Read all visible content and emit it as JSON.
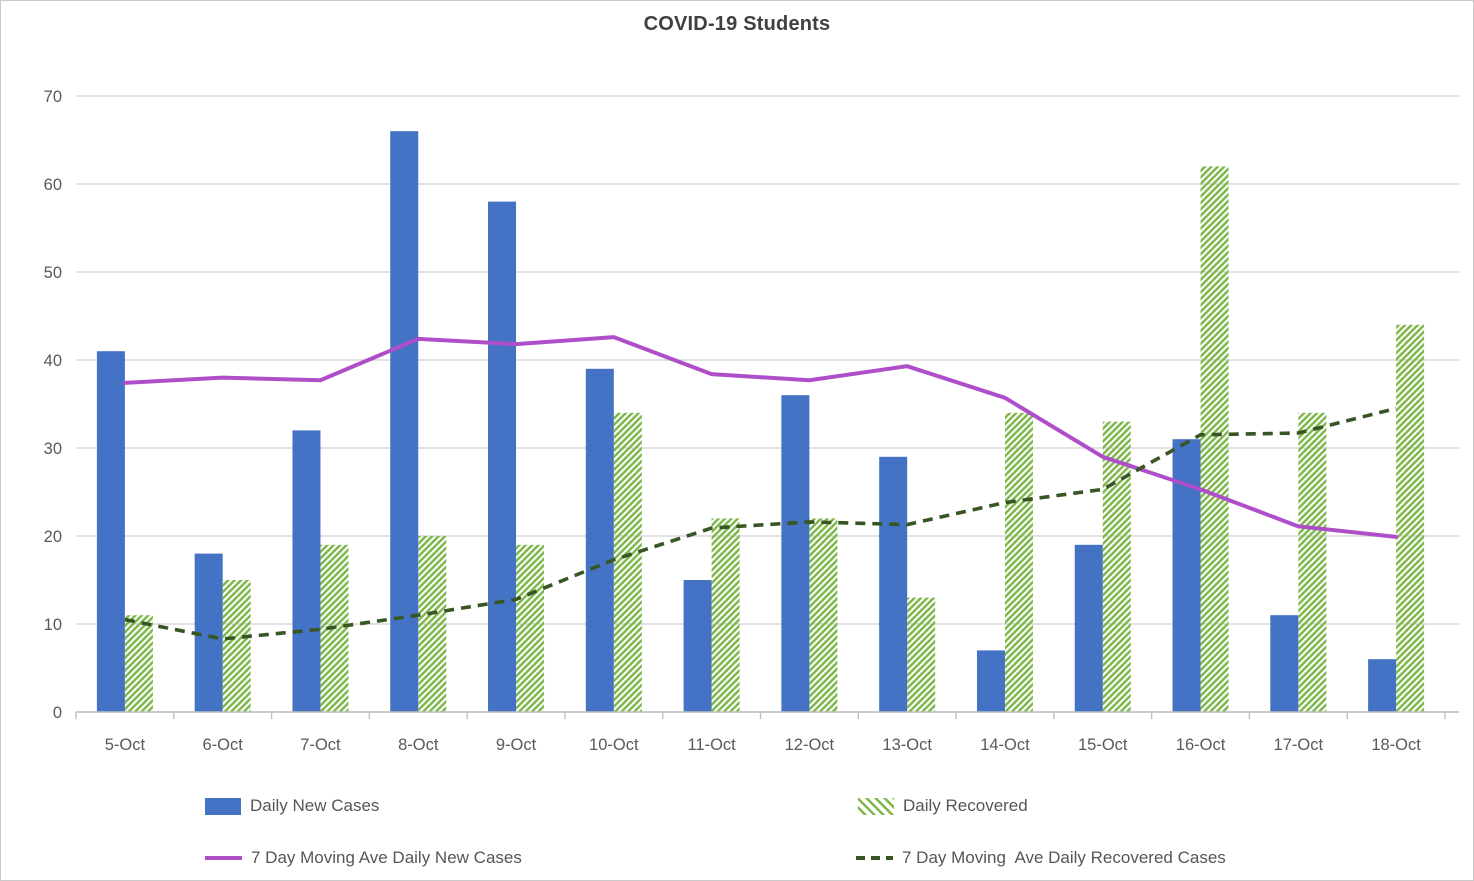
{
  "title": "COVID-19 Students",
  "chart_data": {
    "type": "combo",
    "title": "COVID-19 Students",
    "categories": [
      "5-Oct",
      "6-Oct",
      "7-Oct",
      "8-Oct",
      "9-Oct",
      "10-Oct",
      "11-Oct",
      "12-Oct",
      "13-Oct",
      "14-Oct",
      "15-Oct",
      "16-Oct",
      "17-Oct",
      "18-Oct"
    ],
    "series": [
      {
        "name": "Daily New Cases",
        "kind": "bar",
        "fill": "solid",
        "color": "#4472C4",
        "values": [
          41,
          18,
          32,
          66,
          58,
          39,
          15,
          36,
          29,
          7,
          19,
          31,
          11,
          6
        ]
      },
      {
        "name": "Daily Recovered",
        "kind": "bar",
        "fill": "diagonal-hatch",
        "color": "#7DB649",
        "values": [
          11,
          15,
          19,
          20,
          19,
          34,
          22,
          22,
          13,
          34,
          33,
          62,
          34,
          44
        ]
      },
      {
        "name": "7 Day Moving Ave Daily New Cases",
        "kind": "line",
        "style": "solid",
        "color": "#AE4FC9",
        "values": [
          37.4,
          38.0,
          37.7,
          42.4,
          41.8,
          42.6,
          38.4,
          37.7,
          39.3,
          35.7,
          29.0,
          25.3,
          21.1,
          19.9
        ]
      },
      {
        "name": "7 Day Moving  Ave Daily Recovered Cases",
        "kind": "line",
        "style": "dashed",
        "color": "#375623",
        "values": [
          10.5,
          8.3,
          9.4,
          11.0,
          12.8,
          17.3,
          20.9,
          21.6,
          21.3,
          23.8,
          25.3,
          31.5,
          31.7,
          34.5
        ]
      }
    ],
    "ylim": [
      0,
      70
    ],
    "yticks": [
      0,
      10,
      20,
      30,
      40,
      50,
      60,
      70
    ],
    "grid": "horizontal",
    "legend_position": "bottom"
  },
  "colors": {
    "gridline": "#D9D9D9",
    "axis": "#BFBFBF",
    "tick_text": "#595959",
    "title_text": "#404040",
    "background": "#FFFFFF"
  }
}
